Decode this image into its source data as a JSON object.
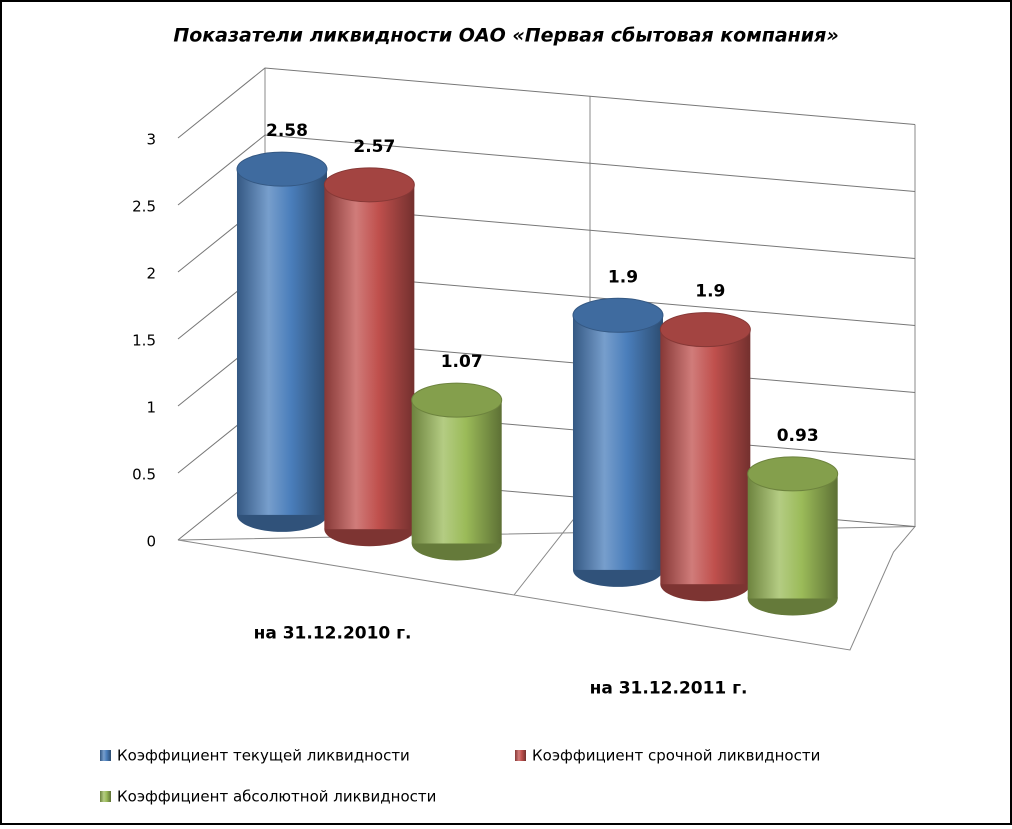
{
  "chart_data": {
    "type": "bar3d",
    "title": "Показатели ликвидности ОАО «Первая сбытовая компания»",
    "categories": [
      "на 31.12.2010 г.",
      "на 31.12.2011 г."
    ],
    "series": [
      {
        "name": "Коэффициент текущей ликвидности",
        "color": "#4a7ebb",
        "values": [
          2.58,
          1.9
        ]
      },
      {
        "name": "Коэффициент срочной ликвидности",
        "color": "#c0504d",
        "values": [
          2.57,
          1.9
        ]
      },
      {
        "name": "Коэффициент абсолютной ликвидности",
        "color": "#9bbb59",
        "values": [
          1.07,
          0.93
        ]
      }
    ],
    "ylim": [
      0,
      3
    ],
    "yticks": [
      0,
      0.5,
      1,
      1.5,
      2,
      2.5,
      3
    ],
    "grid": true,
    "legend": "bottom"
  }
}
